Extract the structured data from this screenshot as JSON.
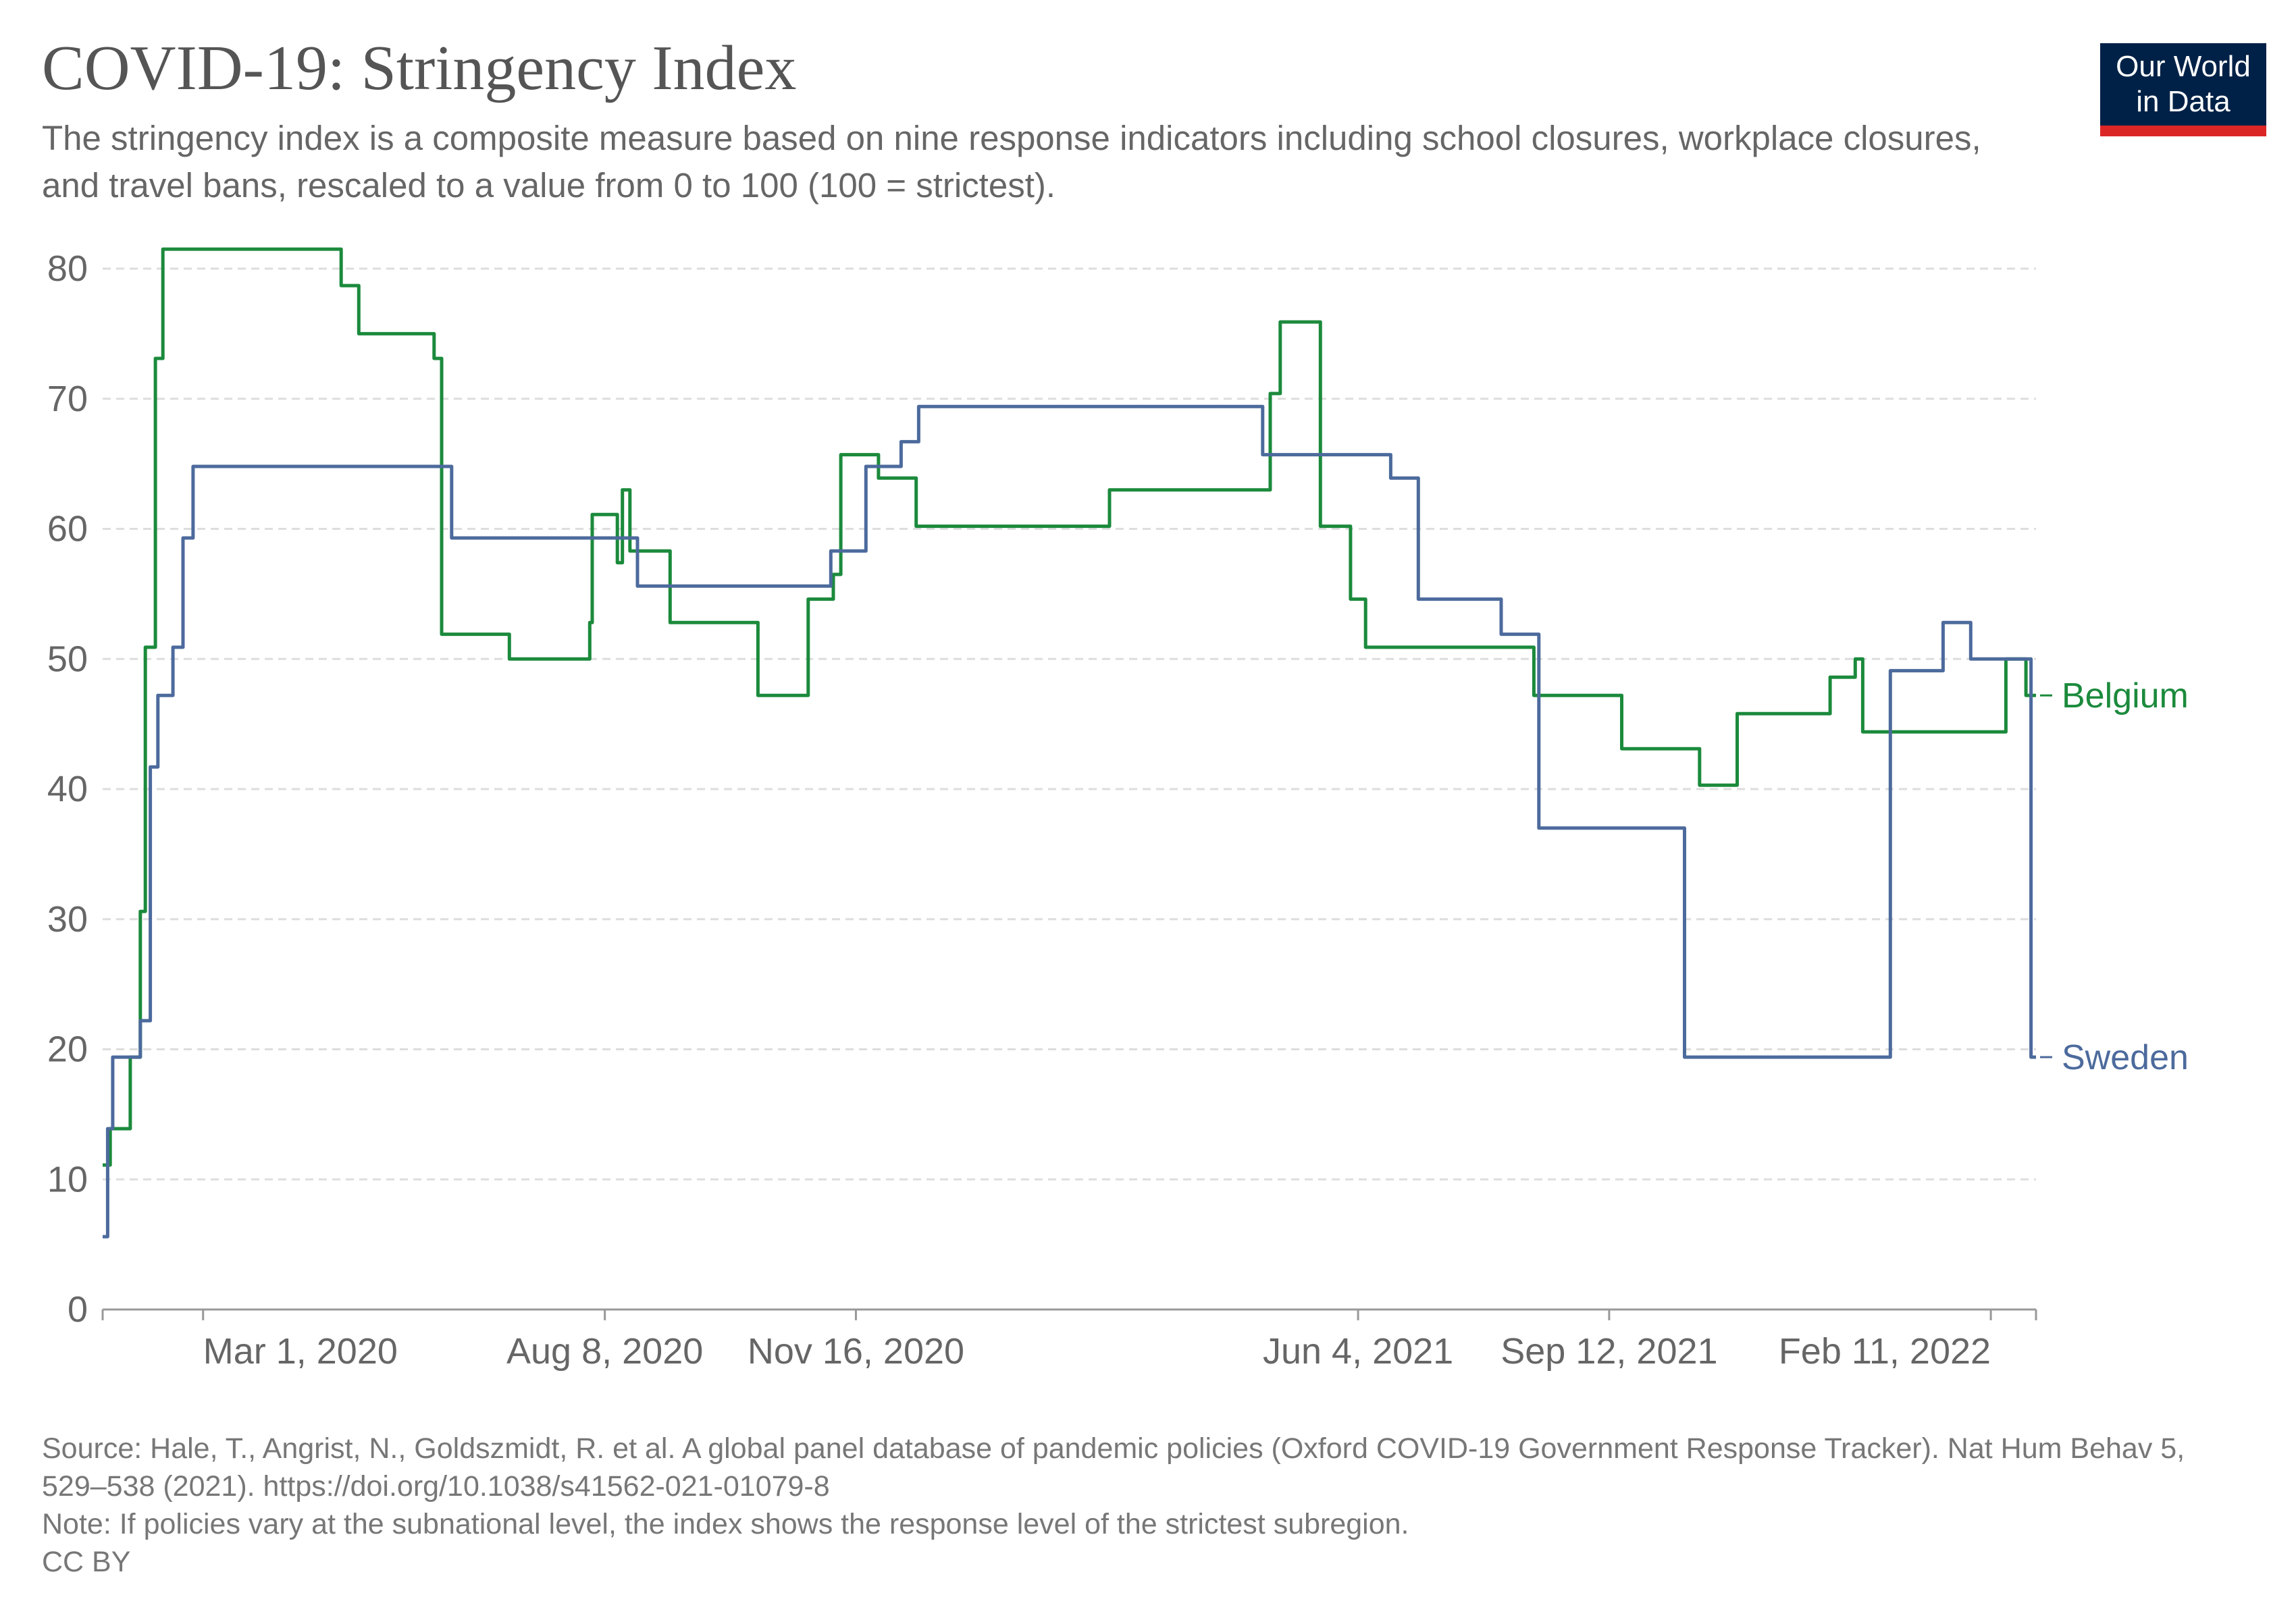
{
  "header": {
    "title": "COVID-19: Stringency Index",
    "subtitle": "The stringency index is a composite measure based on nine response indicators including school closures, workplace closures, and travel bans, rescaled to a value from 0 to 100 (100 = strictest).",
    "logo_line1": "Our World",
    "logo_line2": "in Data"
  },
  "footer": {
    "source": "Source: Hale, T., Angrist, N., Goldszmidt, R. et al. A global panel database of pandemic policies (Oxford COVID-19 Government Response Tracker). Nat Hum Behav 5, 529–538 (2021). https://doi.org/10.1038/s41562-021-01079-8",
    "note": "Note: If policies vary at the subnational level, the index shows the response level of the strictest subregion.",
    "license": "CC BY"
  },
  "colors": {
    "belgium": "#1b8a3c",
    "sweden": "#4c6a9c",
    "grid": "#dddddd",
    "axis": "#666666",
    "logo_bg": "#002147",
    "logo_bar": "#dc2626"
  },
  "chart_data": {
    "type": "line",
    "x_type": "date",
    "xlim": [
      "2020-01-21",
      "2022-03-01"
    ],
    "ylim": [
      0,
      80
    ],
    "yticks": [
      0,
      10,
      20,
      30,
      40,
      50,
      60,
      70,
      80
    ],
    "xticks": [
      {
        "date": "2020-03-01",
        "label": "Mar 1, 2020"
      },
      {
        "date": "2020-08-08",
        "label": "Aug 8, 2020"
      },
      {
        "date": "2020-11-16",
        "label": "Nov 16, 2020"
      },
      {
        "date": "2021-06-04",
        "label": "Jun 4, 2021"
      },
      {
        "date": "2021-09-12",
        "label": "Sep 12, 2021"
      },
      {
        "date": "2022-02-11",
        "label": "Feb 11, 2022"
      }
    ],
    "grid": "horizontal-dashed",
    "legend": "inline-right",
    "series": [
      {
        "name": "Belgium",
        "color": "#1b8a3c",
        "points": [
          [
            "2020-01-21",
            11.1
          ],
          [
            "2020-01-24",
            13.9
          ],
          [
            "2020-02-01",
            19.4
          ],
          [
            "2020-02-05",
            30.6
          ],
          [
            "2020-02-07",
            50.9
          ],
          [
            "2020-02-11",
            73.1
          ],
          [
            "2020-02-14",
            81.5
          ],
          [
            "2020-04-25",
            78.7
          ],
          [
            "2020-05-02",
            75.0
          ],
          [
            "2020-06-01",
            73.1
          ],
          [
            "2020-06-04",
            51.9
          ],
          [
            "2020-07-01",
            50.0
          ],
          [
            "2020-08-02",
            52.8
          ],
          [
            "2020-08-03",
            61.1
          ],
          [
            "2020-08-13",
            57.4
          ],
          [
            "2020-08-15",
            63.0
          ],
          [
            "2020-08-18",
            58.3
          ],
          [
            "2020-09-03",
            52.8
          ],
          [
            "2020-10-08",
            47.2
          ],
          [
            "2020-10-28",
            54.6
          ],
          [
            "2020-11-07",
            56.5
          ],
          [
            "2020-11-10",
            65.7
          ],
          [
            "2020-11-25",
            63.9
          ],
          [
            "2020-12-10",
            60.2
          ],
          [
            "2021-02-25",
            63.0
          ],
          [
            "2021-04-30",
            70.4
          ],
          [
            "2021-05-04",
            75.9
          ],
          [
            "2021-05-20",
            60.2
          ],
          [
            "2021-06-01",
            54.6
          ],
          [
            "2021-06-07",
            50.9
          ],
          [
            "2021-08-13",
            47.2
          ],
          [
            "2021-09-17",
            43.1
          ],
          [
            "2021-10-18",
            40.3
          ],
          [
            "2021-11-02",
            45.8
          ],
          [
            "2021-12-09",
            48.6
          ],
          [
            "2021-12-19",
            50.0
          ],
          [
            "2021-12-22",
            44.4
          ],
          [
            "2022-02-17",
            50.0
          ],
          [
            "2022-02-25",
            47.2
          ],
          [
            "2022-03-01",
            47.2
          ]
        ]
      },
      {
        "name": "Sweden",
        "color": "#4c6a9c",
        "points": [
          [
            "2020-01-21",
            5.6
          ],
          [
            "2020-01-23",
            13.9
          ],
          [
            "2020-01-25",
            19.4
          ],
          [
            "2020-02-05",
            22.2
          ],
          [
            "2020-02-09",
            41.7
          ],
          [
            "2020-02-12",
            47.2
          ],
          [
            "2020-02-18",
            50.9
          ],
          [
            "2020-02-22",
            59.3
          ],
          [
            "2020-02-26",
            64.8
          ],
          [
            "2020-06-08",
            59.3
          ],
          [
            "2020-08-21",
            55.6
          ],
          [
            "2020-11-06",
            58.3
          ],
          [
            "2020-11-20",
            64.8
          ],
          [
            "2020-12-04",
            66.7
          ],
          [
            "2020-12-11",
            69.4
          ],
          [
            "2021-04-27",
            65.7
          ],
          [
            "2021-06-17",
            63.9
          ],
          [
            "2021-06-28",
            54.6
          ],
          [
            "2021-07-31",
            51.9
          ],
          [
            "2021-08-15",
            37.0
          ],
          [
            "2021-10-12",
            19.4
          ],
          [
            "2022-01-02",
            49.1
          ],
          [
            "2022-01-23",
            52.8
          ],
          [
            "2022-02-03",
            50.0
          ],
          [
            "2022-02-25",
            50.0
          ],
          [
            "2022-02-27",
            19.4
          ],
          [
            "2022-03-01",
            19.4
          ]
        ]
      }
    ]
  }
}
